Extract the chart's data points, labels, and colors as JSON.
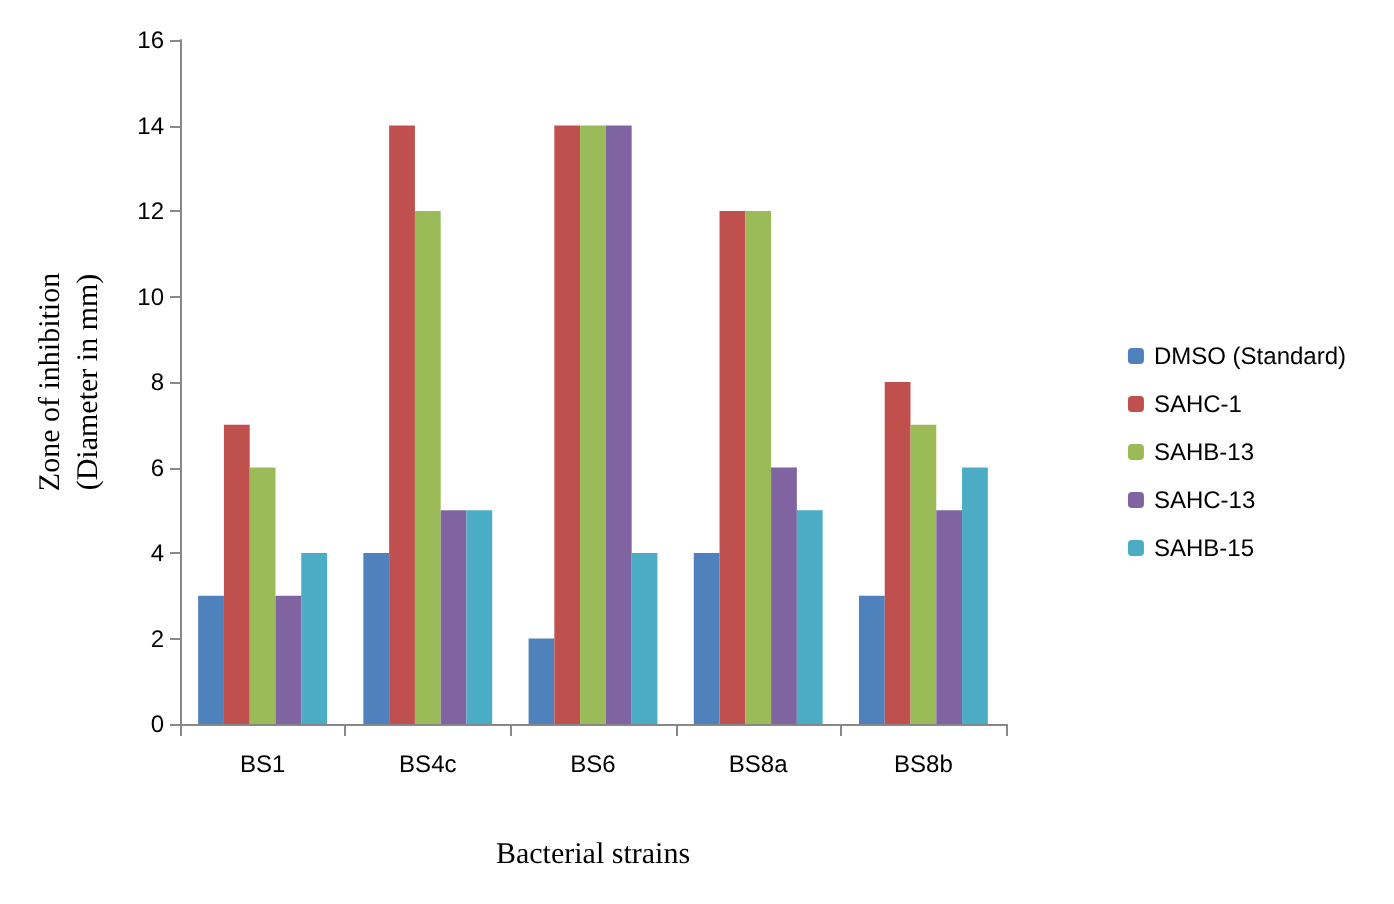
{
  "chart_data": {
    "type": "bar",
    "xlabel": "Bacterial strains",
    "ylabel": "Zone of inhibition\n(Diameter in mm)",
    "categories": [
      "BS1",
      "BS4c",
      "BS6",
      "BS8a",
      "BS8b"
    ],
    "series": [
      {
        "name": "DMSO (Standard)",
        "color": "#4f81bd",
        "values": [
          3,
          4,
          2,
          4,
          3
        ]
      },
      {
        "name": "SAHC-1",
        "color": "#c0504d",
        "values": [
          7,
          14,
          14,
          12,
          8
        ]
      },
      {
        "name": "SAHB-13",
        "color": "#9bbb59",
        "values": [
          6,
          12,
          14,
          12,
          7
        ]
      },
      {
        "name": "SAHC-13",
        "color": "#8064a2",
        "values": [
          3,
          5,
          14,
          6,
          5
        ]
      },
      {
        "name": "SAHB-15",
        "color": "#4bacc6",
        "values": [
          4,
          5,
          4,
          5,
          6
        ]
      }
    ],
    "ylim": [
      0,
      16
    ],
    "yticks": [
      0,
      2,
      4,
      6,
      8,
      10,
      12,
      14,
      16
    ],
    "grid": false,
    "legend": "right"
  }
}
